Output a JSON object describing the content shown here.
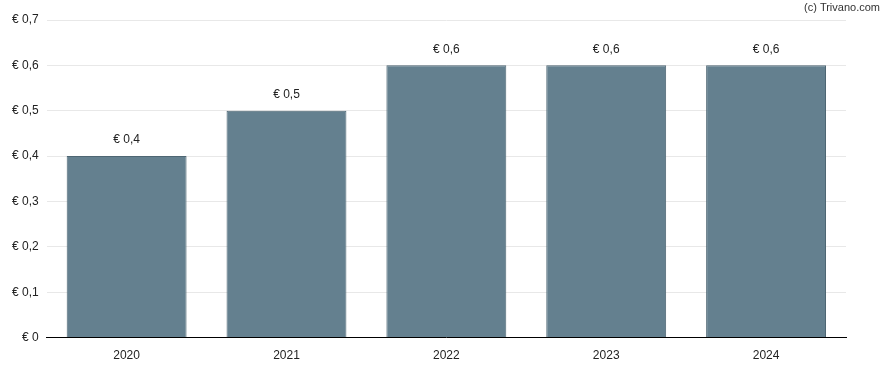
{
  "chart_data": {
    "type": "bar",
    "annotations": [
      "(c) Trivano.com"
    ],
    "categories": [
      "2020",
      "2021",
      "2022",
      "2023",
      "2024"
    ],
    "values": [
      0.4,
      0.5,
      0.6,
      0.6,
      0.6
    ],
    "value_labels": [
      "€ 0,4",
      "€ 0,5",
      "€ 0,6",
      "€ 0,6",
      "€ 0,6"
    ],
    "data_labels": true,
    "color": "#64808f",
    "ylim": [
      0,
      0.7
    ],
    "yticks": [
      {
        "value": 0,
        "label": "€ 0"
      },
      {
        "value": 0.1,
        "label": "€ 0,1"
      },
      {
        "value": 0.2,
        "label": "€ 0,2"
      },
      {
        "value": 0.3,
        "label": "€ 0,3"
      },
      {
        "value": 0.4,
        "label": "€ 0,4"
      },
      {
        "value": 0.5,
        "label": "€ 0,5"
      },
      {
        "value": 0.6,
        "label": "€ 0,6"
      },
      {
        "value": 0.7,
        "label": "€ 0,7"
      }
    ],
    "grid": true
  }
}
